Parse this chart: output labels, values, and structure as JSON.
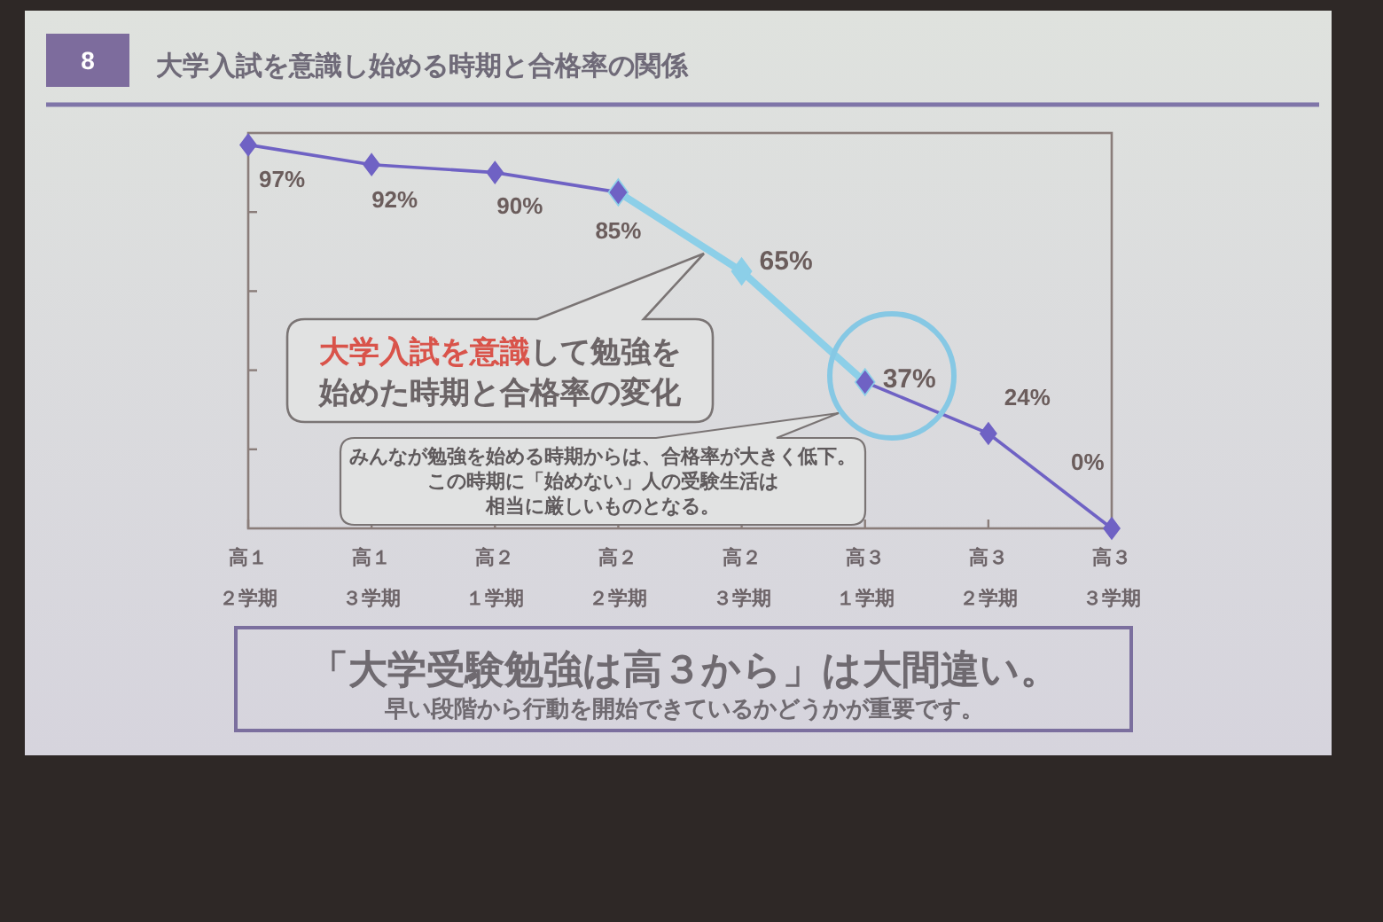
{
  "chart_data": {
    "type": "line",
    "title": "大学入試を意識し始める時期と合格率の関係",
    "categories": [
      "高１２学期",
      "高１３学期",
      "高２１学期",
      "高２２学期",
      "高２３学期",
      "高３１学期",
      "高３２学期",
      "高３３学期"
    ],
    "series": [
      {
        "color": "#6f62c4",
        "values": [
          97,
          92,
          90,
          85,
          null,
          37,
          24,
          0
        ],
        "value_labels": [
          "97%",
          "92%",
          "90%",
          "85%",
          null,
          null,
          "24%",
          "0%"
        ]
      },
      {
        "color": "#8ccfe8",
        "values": [
          null,
          null,
          null,
          85,
          65,
          37,
          null,
          null
        ],
        "value_labels": [
          null,
          null,
          null,
          null,
          "65%",
          "37%",
          null,
          null
        ]
      }
    ],
    "ylim": [
      0,
      100
    ],
    "yticks": [
      {
        "value": 20,
        "label": null
      },
      {
        "value": 40,
        "label": null
      },
      {
        "value": 60,
        "label": null
      },
      {
        "value": 80,
        "label": null
      }
    ],
    "tick_labels": "x",
    "marker": "diamond",
    "line_style": "solid",
    "annotations": [
      "8",
      "大学入試を意識",
      "して勉強を",
      "始めた時期と合格率の変化",
      "みんなが勉強を始める時期からは、合格率が大きく低下。",
      "この時期に「始めない」人の受験生活は",
      "相当に厳しいものとなる。",
      "「大学受験勉強は高３から」は大間違い。",
      "早い段階から行動を開始できているかどうかが重要です。"
    ]
  }
}
